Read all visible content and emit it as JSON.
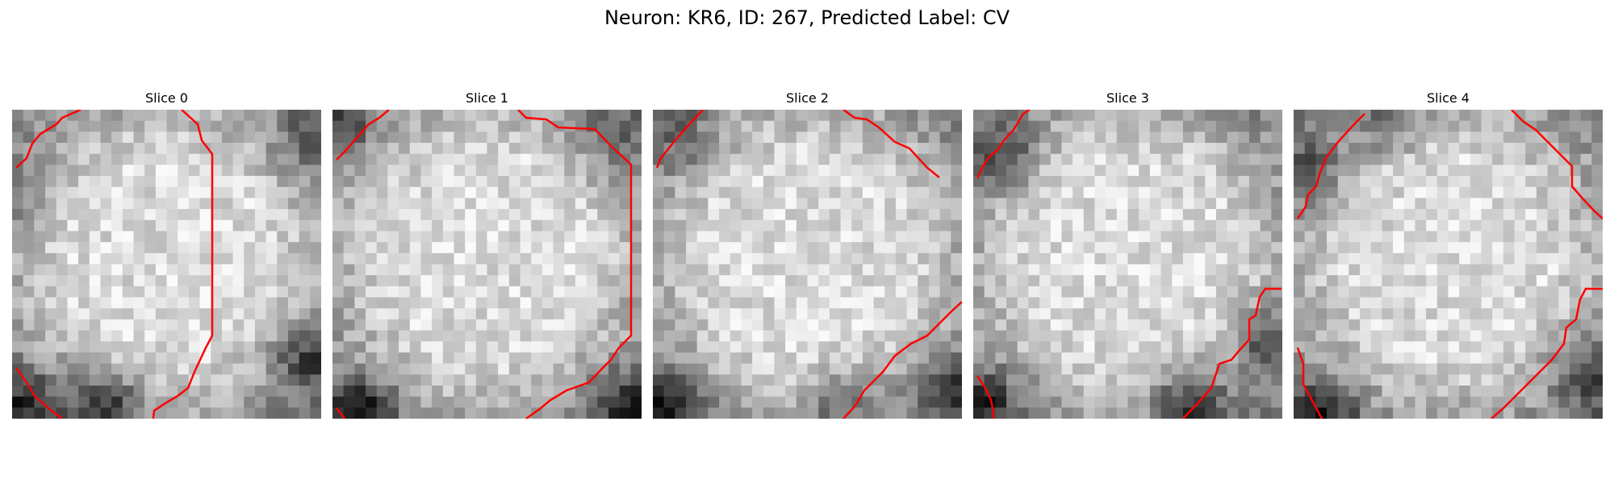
{
  "figure": {
    "title": "Neuron: KR6, ID: 267, Predicted Label: CV"
  },
  "slices": [
    {
      "title": "Slice 0"
    },
    {
      "title": "Slice 1"
    },
    {
      "title": "Slice 2"
    },
    {
      "title": "Slice 3"
    },
    {
      "title": "Slice 4"
    }
  ],
  "overlay": {
    "contour_color": "#ff0000"
  }
}
